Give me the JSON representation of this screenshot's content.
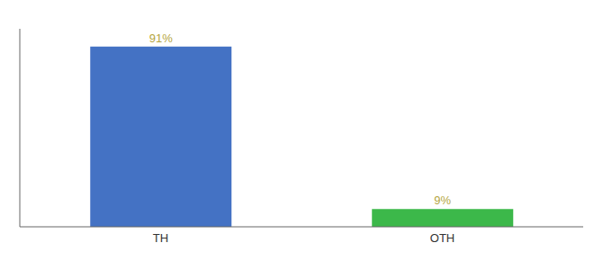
{
  "chart_data": {
    "type": "bar",
    "categories": [
      "TH",
      "OTH"
    ],
    "values": [
      91,
      9
    ],
    "value_labels": [
      "91%",
      "9%"
    ],
    "colors": [
      "#4472c4",
      "#3cb84a"
    ],
    "ylim": [
      0,
      100
    ],
    "yticks": [],
    "grid": false,
    "data_labels": true,
    "tick_labels": "x"
  }
}
